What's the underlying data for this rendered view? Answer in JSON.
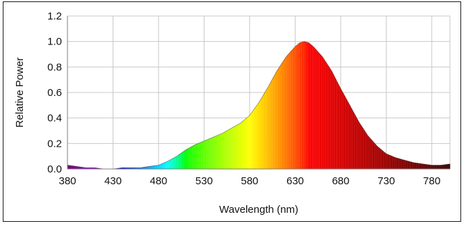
{
  "chart_data": {
    "type": "area",
    "title": "",
    "xlabel": "Wavelength (nm)",
    "ylabel": "Relative Power",
    "xlim": [
      380,
      800
    ],
    "ylim": [
      0,
      1.2
    ],
    "x_ticks": [
      "380",
      "430",
      "480",
      "530",
      "580",
      "630",
      "680",
      "730",
      "780"
    ],
    "y_ticks": [
      "0.0",
      "0.2",
      "0.4",
      "0.6",
      "0.8",
      "1.0",
      "1.2"
    ],
    "grid": true,
    "legend": "none",
    "fill": "spectral-color-by-wavelength",
    "series": [
      {
        "x": [
          380,
          390,
          400,
          410,
          420,
          430,
          440,
          450,
          460,
          470,
          480,
          490,
          500,
          510,
          520,
          530,
          540,
          550,
          560,
          570,
          580,
          590,
          600,
          610,
          620,
          630,
          635,
          640,
          645,
          650,
          660,
          670,
          680,
          690,
          700,
          710,
          720,
          730,
          740,
          750,
          760,
          770,
          780,
          790,
          800
        ],
        "values": [
          0.03,
          0.02,
          0.01,
          0.01,
          0.0,
          0.0,
          0.01,
          0.01,
          0.01,
          0.02,
          0.03,
          0.06,
          0.1,
          0.15,
          0.19,
          0.22,
          0.25,
          0.28,
          0.32,
          0.36,
          0.42,
          0.52,
          0.64,
          0.77,
          0.88,
          0.96,
          0.99,
          1.0,
          0.99,
          0.96,
          0.88,
          0.77,
          0.63,
          0.5,
          0.37,
          0.26,
          0.18,
          0.12,
          0.09,
          0.07,
          0.05,
          0.04,
          0.03,
          0.03,
          0.04
        ]
      }
    ]
  }
}
